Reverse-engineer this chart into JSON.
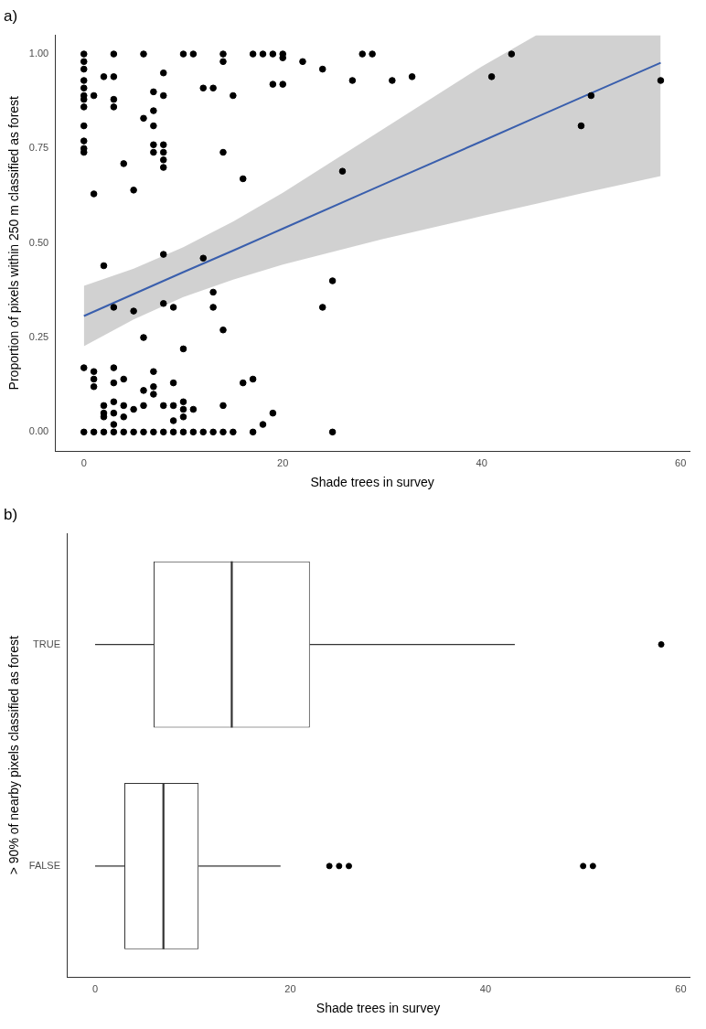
{
  "chart_data": [
    {
      "type": "scatter",
      "title": "a)",
      "xlabel": "Shade trees in survey",
      "ylabel": "Proportion of pixels within 250 m classified as forest",
      "xlim": [
        -2.9,
        60.9
      ],
      "xticks": [
        0,
        20,
        40,
        60
      ],
      "ylim": [
        -0.05,
        1.05
      ],
      "yticks": [
        {
          "value": 0,
          "label": "0.00"
        },
        {
          "value": 0.25,
          "label": "0.25"
        },
        {
          "value": 0.5,
          "label": "0.50"
        },
        {
          "value": 0.75,
          "label": "0.75"
        },
        {
          "value": 1,
          "label": "1.00"
        }
      ],
      "grid": false,
      "legend": false,
      "series": [
        {
          "type": "scatter",
          "color": "#000000",
          "marker": "circle",
          "x": [
            0,
            0,
            0,
            0,
            0,
            0,
            0,
            0,
            0,
            0,
            0,
            0,
            0,
            0,
            1,
            1,
            1,
            1,
            1,
            1,
            2,
            2,
            2,
            2,
            2,
            2,
            3,
            3,
            3,
            3,
            3,
            3,
            3,
            3,
            3,
            3,
            3,
            4,
            4,
            4,
            4,
            4,
            5,
            5,
            5,
            5,
            6,
            6,
            6,
            6,
            6,
            6,
            7,
            7,
            7,
            7,
            7,
            7,
            7,
            7,
            7,
            8,
            8,
            8,
            8,
            8,
            8,
            8,
            8,
            8,
            8,
            9,
            9,
            9,
            9,
            9,
            10,
            10,
            10,
            10,
            10,
            10,
            11,
            11,
            11,
            12,
            12,
            12,
            13,
            13,
            13,
            13,
            14,
            14,
            14,
            14,
            14,
            14,
            15,
            15,
            16,
            16,
            17,
            17,
            17,
            18,
            18,
            19,
            19,
            19,
            20,
            20,
            20,
            22,
            24,
            24,
            25,
            25,
            26,
            27,
            28,
            29,
            31,
            33,
            41,
            43,
            50,
            51,
            58
          ],
          "values": [
            1.0,
            0.98,
            0.96,
            0.93,
            0.91,
            0.89,
            0.88,
            0.86,
            0.81,
            0.77,
            0.75,
            0.74,
            0.17,
            0.0,
            0.89,
            0.63,
            0.16,
            0.14,
            0.12,
            0.0,
            0.94,
            0.44,
            0.07,
            0.05,
            0.04,
            0.0,
            1.0,
            0.94,
            0.88,
            0.86,
            0.33,
            0.17,
            0.13,
            0.08,
            0.05,
            0.02,
            0.0,
            0.71,
            0.14,
            0.07,
            0.04,
            0.0,
            0.64,
            0.32,
            0.06,
            0.0,
            1.0,
            0.83,
            0.25,
            0.11,
            0.07,
            0.0,
            0.9,
            0.85,
            0.81,
            0.76,
            0.74,
            0.16,
            0.12,
            0.1,
            0.0,
            0.95,
            0.89,
            0.76,
            0.74,
            0.72,
            0.7,
            0.47,
            0.34,
            0.07,
            0.0,
            0.33,
            0.13,
            0.07,
            0.03,
            0.0,
            1.0,
            0.22,
            0.08,
            0.06,
            0.04,
            0.0,
            1.0,
            0.06,
            0.0,
            0.91,
            0.46,
            0.0,
            0.91,
            0.37,
            0.33,
            0.0,
            1.0,
            0.98,
            0.74,
            0.27,
            0.07,
            0.0,
            0.89,
            0.0,
            0.67,
            0.13,
            1.0,
            0.14,
            0.0,
            1.0,
            0.02,
            1.0,
            0.92,
            0.05,
            1.0,
            0.99,
            0.92,
            0.98,
            0.96,
            0.33,
            0.4,
            0.0,
            0.69,
            0.93,
            1.0,
            1.0,
            0.93,
            0.94,
            0.94,
            1.0,
            0.81,
            0.89,
            0.93
          ]
        },
        {
          "type": "line",
          "color": "#3a5fad",
          "x": [
            0,
            5,
            10,
            15,
            20,
            30,
            40,
            45.5,
            50,
            58
          ],
          "values": [
            0.307,
            0.365,
            0.423,
            0.48,
            0.538,
            0.654,
            0.769,
            0.833,
            0.885,
            0.977
          ],
          "lower": [
            0.227,
            0.298,
            0.357,
            0.403,
            0.443,
            0.51,
            0.571,
            0.604,
            0.631,
            0.677
          ],
          "upper": [
            0.387,
            0.432,
            0.489,
            0.557,
            0.633,
            0.8,
            0.967,
            1.05,
            1.05,
            1.05
          ]
        }
      ]
    },
    {
      "type": "box",
      "title": "b)",
      "xlabel": "Shade trees in survey",
      "ylabel": "> 90% of nearby pixels classified as forest",
      "orientation": "horizontal",
      "categories": [
        "TRUE",
        "FALSE"
      ],
      "xlim": [
        -2.9,
        60.9
      ],
      "xticks": [
        0,
        20,
        40,
        60
      ],
      "grid": false,
      "legend": false,
      "boxes": [
        {
          "low": 0,
          "q1": 6,
          "median": 14,
          "q3": 22,
          "high": 43,
          "outliers": [
            58
          ]
        },
        {
          "low": 0,
          "q1": 3,
          "median": 7,
          "q3": 10.6,
          "high": 19,
          "outliers": [
            24,
            25,
            26,
            50,
            51
          ]
        }
      ]
    }
  ]
}
